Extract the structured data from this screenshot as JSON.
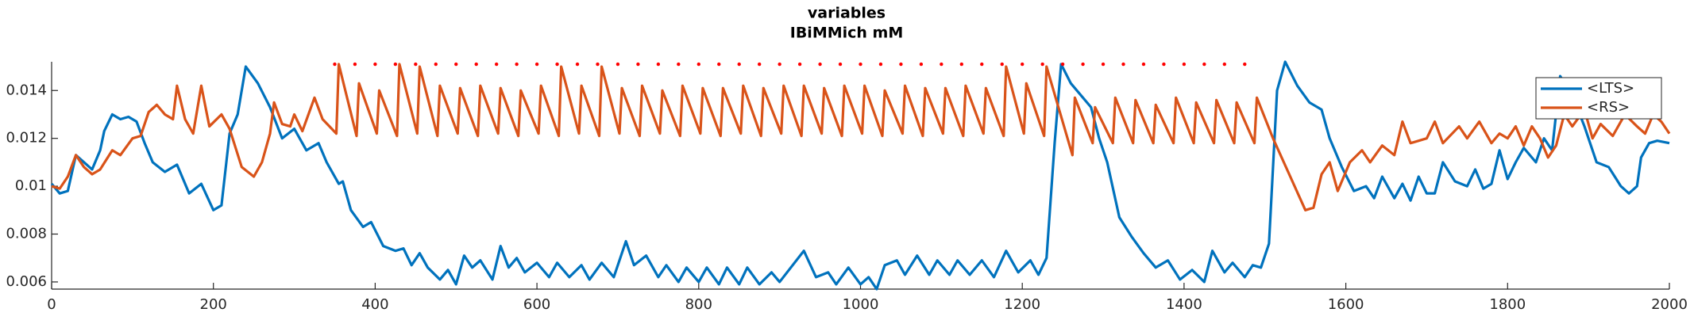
{
  "chart_data": {
    "type": "line",
    "title": "variables",
    "subtitle": "IBiMMich mM",
    "xlim": [
      0,
      2000
    ],
    "xticks": [
      0,
      200,
      400,
      600,
      800,
      1000,
      1200,
      1400,
      1600,
      1800,
      2000
    ],
    "ylim": [
      0.0057,
      0.0152
    ],
    "yticks": [
      0.006,
      0.008,
      0.01,
      0.012,
      0.014
    ],
    "legend": "northeast",
    "series": [
      {
        "name": "<LTS>",
        "color": "#0072BD",
        "x": [
          0,
          10,
          20,
          30,
          40,
          50,
          60,
          65,
          75,
          85,
          95,
          105,
          115,
          125,
          140,
          155,
          170,
          185,
          200,
          210,
          220,
          230,
          240,
          255,
          270,
          285,
          300,
          315,
          330,
          340,
          355,
          360,
          370,
          385,
          395,
          410,
          425,
          435,
          445,
          455,
          465,
          480,
          490,
          500,
          510,
          520,
          530,
          545,
          555,
          565,
          575,
          585,
          600,
          615,
          625,
          640,
          655,
          665,
          680,
          695,
          710,
          720,
          735,
          750,
          760,
          775,
          785,
          800,
          810,
          825,
          835,
          850,
          860,
          875,
          890,
          900,
          930,
          945,
          960,
          970,
          985,
          1000,
          1010,
          1020,
          1030,
          1045,
          1055,
          1070,
          1085,
          1095,
          1110,
          1120,
          1135,
          1150,
          1165,
          1180,
          1195,
          1210,
          1220,
          1230,
          1240,
          1248,
          1260,
          1275,
          1285,
          1295,
          1305,
          1320,
          1335,
          1350,
          1365,
          1380,
          1395,
          1410,
          1425,
          1435,
          1450,
          1460,
          1475,
          1485,
          1495,
          1505,
          1515,
          1525,
          1540,
          1555,
          1570,
          1580,
          1595,
          1610,
          1625,
          1635,
          1645,
          1660,
          1670,
          1680,
          1690,
          1700,
          1710,
          1720,
          1735,
          1750,
          1760,
          1770,
          1780,
          1790,
          1800,
          1810,
          1820,
          1835,
          1845,
          1855,
          1865,
          1880,
          1895,
          1910,
          1925,
          1940,
          1950,
          1960,
          1965,
          1975,
          1985,
          2000
        ],
        "values": [
          0.0101,
          0.0097,
          0.0098,
          0.0113,
          0.011,
          0.0107,
          0.0115,
          0.0123,
          0.013,
          0.0128,
          0.0129,
          0.0127,
          0.0118,
          0.011,
          0.0106,
          0.0109,
          0.0097,
          0.0101,
          0.009,
          0.0092,
          0.0122,
          0.013,
          0.015,
          0.0143,
          0.0133,
          0.012,
          0.0124,
          0.0115,
          0.0118,
          0.011,
          0.0101,
          0.0102,
          0.009,
          0.0083,
          0.0085,
          0.0075,
          0.0073,
          0.0074,
          0.0067,
          0.0072,
          0.0066,
          0.0061,
          0.0065,
          0.0059,
          0.0071,
          0.0066,
          0.0069,
          0.0061,
          0.0075,
          0.0066,
          0.007,
          0.0064,
          0.0068,
          0.0062,
          0.0068,
          0.0062,
          0.0067,
          0.0061,
          0.0068,
          0.0062,
          0.0077,
          0.0067,
          0.0071,
          0.0062,
          0.0067,
          0.006,
          0.0066,
          0.006,
          0.0066,
          0.0059,
          0.0066,
          0.0059,
          0.0066,
          0.0059,
          0.0064,
          0.006,
          0.0073,
          0.0062,
          0.0064,
          0.0059,
          0.0066,
          0.0059,
          0.0062,
          0.0057,
          0.0067,
          0.0069,
          0.0063,
          0.0071,
          0.0063,
          0.0069,
          0.0063,
          0.0069,
          0.0063,
          0.0069,
          0.0062,
          0.0073,
          0.0064,
          0.0069,
          0.0063,
          0.007,
          0.0118,
          0.0151,
          0.0143,
          0.0137,
          0.0133,
          0.012,
          0.011,
          0.0087,
          0.0079,
          0.0072,
          0.0066,
          0.0069,
          0.0061,
          0.0065,
          0.006,
          0.0073,
          0.0064,
          0.0068,
          0.0062,
          0.0067,
          0.0066,
          0.0076,
          0.014,
          0.0152,
          0.0142,
          0.0135,
          0.0132,
          0.012,
          0.0108,
          0.0098,
          0.01,
          0.0095,
          0.0104,
          0.0095,
          0.0101,
          0.0094,
          0.0104,
          0.0097,
          0.0097,
          0.011,
          0.0102,
          0.01,
          0.0107,
          0.0099,
          0.0101,
          0.0115,
          0.0103,
          0.011,
          0.0116,
          0.011,
          0.012,
          0.0115,
          0.0146,
          0.0138,
          0.0125,
          0.011,
          0.0108,
          0.01,
          0.0097,
          0.01,
          0.0112,
          0.0118,
          0.0119,
          0.0118
        ]
      },
      {
        "name": "<RS>",
        "color": "#D95319",
        "x": [
          0,
          10,
          20,
          30,
          40,
          50,
          60,
          75,
          85,
          100,
          110,
          120,
          130,
          140,
          150,
          155,
          165,
          175,
          185,
          195,
          210,
          220,
          235,
          250,
          260,
          270,
          275,
          285,
          295,
          300,
          310,
          325,
          335,
          352,
          355,
          377,
          380,
          402,
          405,
          427,
          430,
          452,
          455,
          477,
          480,
          502,
          505,
          527,
          530,
          552,
          555,
          577,
          580,
          602,
          605,
          627,
          630,
          652,
          655,
          677,
          680,
          702,
          705,
          727,
          730,
          752,
          755,
          777,
          780,
          802,
          805,
          827,
          830,
          852,
          855,
          877,
          880,
          902,
          905,
          927,
          930,
          952,
          955,
          977,
          980,
          1002,
          1005,
          1027,
          1030,
          1052,
          1055,
          1077,
          1080,
          1102,
          1105,
          1127,
          1130,
          1152,
          1155,
          1177,
          1180,
          1202,
          1205,
          1227,
          1230,
          1262,
          1265,
          1287,
          1290,
          1312,
          1315,
          1337,
          1340,
          1362,
          1365,
          1387,
          1390,
          1412,
          1415,
          1437,
          1440,
          1462,
          1465,
          1487,
          1490,
          1510,
          1530,
          1550,
          1560,
          1570,
          1580,
          1590,
          1605,
          1620,
          1630,
          1645,
          1660,
          1670,
          1680,
          1700,
          1710,
          1720,
          1740,
          1750,
          1765,
          1780,
          1790,
          1800,
          1810,
          1820,
          1830,
          1840,
          1850,
          1860,
          1870,
          1880,
          1895,
          1905,
          1915,
          1930,
          1945,
          1960,
          1970,
          1980,
          1990,
          2000
        ],
        "values": [
          0.01,
          0.0099,
          0.0104,
          0.0113,
          0.0108,
          0.0105,
          0.0107,
          0.0115,
          0.0113,
          0.012,
          0.0121,
          0.0131,
          0.0134,
          0.013,
          0.0128,
          0.0142,
          0.0128,
          0.0122,
          0.0142,
          0.0125,
          0.013,
          0.0124,
          0.0108,
          0.0104,
          0.011,
          0.0122,
          0.0135,
          0.0126,
          0.0125,
          0.013,
          0.0123,
          0.0137,
          0.0128,
          0.0122,
          0.0151,
          0.0121,
          0.0143,
          0.0122,
          0.014,
          0.0121,
          0.0151,
          0.0122,
          0.015,
          0.0121,
          0.0142,
          0.0122,
          0.0141,
          0.0121,
          0.0142,
          0.0122,
          0.0141,
          0.0121,
          0.014,
          0.0122,
          0.0142,
          0.0121,
          0.015,
          0.0122,
          0.0142,
          0.0121,
          0.015,
          0.0122,
          0.0141,
          0.0121,
          0.0142,
          0.0122,
          0.014,
          0.0121,
          0.0142,
          0.0122,
          0.0141,
          0.0121,
          0.0141,
          0.0122,
          0.0142,
          0.0121,
          0.0141,
          0.0122,
          0.0142,
          0.0121,
          0.0142,
          0.0122,
          0.0141,
          0.0121,
          0.0142,
          0.0122,
          0.0142,
          0.0121,
          0.014,
          0.0122,
          0.0142,
          0.0121,
          0.0141,
          0.0122,
          0.0141,
          0.0121,
          0.0142,
          0.0122,
          0.0141,
          0.0121,
          0.015,
          0.0122,
          0.0143,
          0.0121,
          0.015,
          0.0113,
          0.0137,
          0.0118,
          0.0133,
          0.0118,
          0.0137,
          0.0118,
          0.0136,
          0.0118,
          0.0134,
          0.0118,
          0.0137,
          0.0118,
          0.0135,
          0.0118,
          0.0136,
          0.0118,
          0.0135,
          0.0118,
          0.0137,
          0.012,
          0.0105,
          0.009,
          0.0091,
          0.0105,
          0.011,
          0.0098,
          0.011,
          0.0115,
          0.011,
          0.0117,
          0.0113,
          0.0127,
          0.0118,
          0.012,
          0.0127,
          0.0118,
          0.0125,
          0.012,
          0.0127,
          0.0118,
          0.0122,
          0.012,
          0.0125,
          0.0117,
          0.0125,
          0.012,
          0.0112,
          0.0117,
          0.013,
          0.0125,
          0.0132,
          0.012,
          0.0126,
          0.0121,
          0.013,
          0.0125,
          0.0122,
          0.013,
          0.0127,
          0.0122
        ]
      }
    ],
    "markers": {
      "color": "#FF0000",
      "y": 0.0151,
      "x": [
        350,
        375,
        400,
        425,
        450,
        475,
        500,
        525,
        550,
        575,
        600,
        625,
        650,
        675,
        700,
        725,
        750,
        775,
        800,
        825,
        850,
        875,
        900,
        925,
        950,
        975,
        1000,
        1025,
        1050,
        1075,
        1100,
        1125,
        1150,
        1175,
        1200,
        1225,
        1250,
        1275,
        1300,
        1325,
        1350,
        1375,
        1400,
        1425,
        1450,
        1475
      ]
    }
  }
}
